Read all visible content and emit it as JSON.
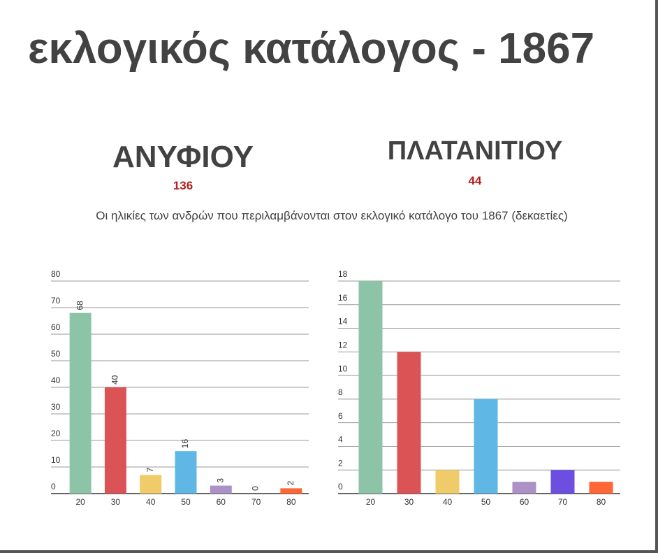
{
  "title": "εκλογικός κατάλογος - 1867",
  "subtitle": "Οι ηλικίες των ανδρών που περιλαμβάνονται στον εκλογικό κατάλογο του 1867 (δεκαετίες)",
  "chart_data": [
    {
      "type": "bar",
      "title": "ΑΝΥΦΙΟΥ",
      "total": 136,
      "categories": [
        "20",
        "30",
        "40",
        "50",
        "60",
        "70",
        "80"
      ],
      "values": [
        68,
        40,
        7,
        16,
        3,
        0,
        2
      ],
      "colors": [
        "#8dc3a7",
        "#dc5356",
        "#f0cb69",
        "#5fb7e5",
        "#ab91c5",
        "#6c4fe0",
        "#fd6735"
      ],
      "ylim": [
        0,
        80
      ],
      "yticks": [
        0,
        10,
        20,
        30,
        40,
        50,
        60,
        70,
        80
      ],
      "grid": true,
      "show_values": true
    },
    {
      "type": "bar",
      "title": "ΠΛΑΤΑΝΙΤΙΟΥ",
      "total": 44,
      "categories": [
        "20",
        "30",
        "40",
        "50",
        "60",
        "70",
        "80"
      ],
      "values": [
        18,
        12,
        2,
        8,
        1,
        2,
        1
      ],
      "colors": [
        "#8dc3a7",
        "#dc5356",
        "#f0cb69",
        "#5fb7e5",
        "#ab91c5",
        "#6c4fe0",
        "#fd6735"
      ],
      "ylim": [
        0,
        18
      ],
      "yticks": [
        0,
        2,
        4,
        6,
        8,
        10,
        12,
        14,
        16,
        18
      ],
      "grid": true,
      "show_values": false
    }
  ]
}
